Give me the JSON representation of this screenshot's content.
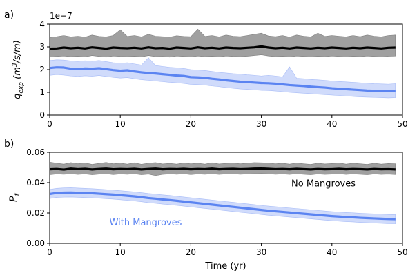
{
  "chart_data": [
    {
      "type": "line",
      "panel_label": "a)",
      "ylabel": "q_exp (m³/s/m)",
      "ylabel_parts": {
        "q": "q",
        "sub": "exp",
        "unit_open": " (m",
        "sup": "3",
        "unit_close": "/s/m)"
      },
      "y_multiplier": "1e−7",
      "xlim": [
        0,
        50
      ],
      "ylim": [
        0,
        4
      ],
      "xticks": [
        0,
        10,
        20,
        30,
        40,
        50
      ],
      "yticks": [
        0,
        1,
        2,
        3,
        4
      ],
      "grid": false,
      "series": [
        {
          "name": "No Mangroves",
          "color": "#000000",
          "band_color": "#808080",
          "x": [
            0,
            1,
            2,
            3,
            4,
            5,
            6,
            7,
            8,
            9,
            10,
            11,
            12,
            13,
            14,
            15,
            16,
            17,
            18,
            19,
            20,
            21,
            22,
            23,
            24,
            25,
            26,
            27,
            28,
            29,
            30,
            31,
            32,
            33,
            34,
            35,
            36,
            37,
            38,
            39,
            40,
            41,
            42,
            43,
            44,
            45,
            46,
            47,
            48,
            49
          ],
          "mean": [
            2.92,
            2.93,
            2.97,
            2.94,
            2.96,
            2.93,
            2.98,
            2.95,
            2.92,
            2.97,
            2.95,
            2.94,
            2.96,
            2.93,
            2.98,
            2.94,
            2.95,
            2.92,
            2.97,
            2.95,
            2.93,
            2.98,
            2.94,
            2.96,
            2.93,
            2.97,
            2.95,
            2.94,
            2.96,
            2.98,
            3.02,
            2.97,
            2.94,
            2.96,
            2.93,
            2.97,
            2.95,
            2.93,
            2.96,
            2.94,
            2.97,
            2.95,
            2.93,
            2.96,
            2.94,
            2.97,
            2.95,
            2.93,
            2.96,
            2.97
          ],
          "upper": [
            3.42,
            3.45,
            3.5,
            3.44,
            3.47,
            3.43,
            3.52,
            3.46,
            3.44,
            3.5,
            3.75,
            3.46,
            3.5,
            3.44,
            3.55,
            3.47,
            3.45,
            3.43,
            3.49,
            3.46,
            3.45,
            3.78,
            3.46,
            3.5,
            3.44,
            3.52,
            3.47,
            3.45,
            3.5,
            3.55,
            3.6,
            3.48,
            3.45,
            3.5,
            3.43,
            3.52,
            3.47,
            3.44,
            3.6,
            3.46,
            3.5,
            3.47,
            3.44,
            3.5,
            3.45,
            3.52,
            3.47,
            3.44,
            3.5,
            3.52
          ],
          "lower": [
            2.55,
            2.58,
            2.6,
            2.57,
            2.59,
            2.56,
            2.62,
            2.58,
            2.55,
            2.6,
            2.58,
            2.57,
            2.59,
            2.56,
            2.62,
            2.57,
            2.58,
            2.55,
            2.6,
            2.58,
            2.56,
            2.6,
            2.57,
            2.59,
            2.56,
            2.6,
            2.58,
            2.57,
            2.59,
            2.62,
            2.65,
            2.6,
            2.57,
            2.59,
            2.56,
            2.6,
            2.58,
            2.56,
            2.59,
            2.57,
            2.6,
            2.58,
            2.56,
            2.59,
            2.57,
            2.6,
            2.58,
            2.56,
            2.59,
            2.6
          ]
        },
        {
          "name": "With Mangroves",
          "color": "#5b84f1",
          "band_color": "#a9bdf7",
          "x": [
            0,
            1,
            2,
            3,
            4,
            5,
            6,
            7,
            8,
            9,
            10,
            11,
            12,
            13,
            14,
            15,
            16,
            17,
            18,
            19,
            20,
            21,
            22,
            23,
            24,
            25,
            26,
            27,
            28,
            29,
            30,
            31,
            32,
            33,
            34,
            35,
            36,
            37,
            38,
            39,
            40,
            41,
            42,
            43,
            44,
            45,
            46,
            47,
            48,
            49
          ],
          "mean": [
            2.07,
            2.1,
            2.09,
            2.04,
            2.02,
            2.05,
            2.04,
            2.06,
            2.02,
            1.98,
            1.95,
            1.97,
            1.92,
            1.88,
            1.85,
            1.83,
            1.8,
            1.77,
            1.74,
            1.72,
            1.67,
            1.66,
            1.64,
            1.6,
            1.57,
            1.53,
            1.5,
            1.47,
            1.45,
            1.43,
            1.41,
            1.4,
            1.38,
            1.35,
            1.32,
            1.3,
            1.28,
            1.25,
            1.23,
            1.21,
            1.18,
            1.16,
            1.14,
            1.12,
            1.1,
            1.08,
            1.07,
            1.06,
            1.05,
            1.06
          ],
          "upper": [
            2.4,
            2.43,
            2.42,
            2.38,
            2.36,
            2.39,
            2.37,
            2.4,
            2.35,
            2.3,
            2.28,
            2.3,
            2.25,
            2.2,
            2.52,
            2.18,
            2.14,
            2.1,
            2.08,
            2.05,
            2.0,
            1.98,
            1.96,
            1.92,
            1.88,
            1.85,
            1.82,
            1.8,
            1.77,
            1.75,
            1.72,
            1.75,
            1.72,
            1.68,
            2.12,
            1.62,
            1.6,
            1.57,
            1.55,
            1.53,
            1.5,
            1.48,
            1.46,
            1.44,
            1.42,
            1.4,
            1.38,
            1.37,
            1.36,
            1.38
          ],
          "lower": [
            1.75,
            1.78,
            1.76,
            1.72,
            1.7,
            1.73,
            1.71,
            1.74,
            1.7,
            1.66,
            1.63,
            1.65,
            1.6,
            1.56,
            1.53,
            1.5,
            1.47,
            1.44,
            1.42,
            1.39,
            1.35,
            1.34,
            1.32,
            1.28,
            1.25,
            1.21,
            1.18,
            1.15,
            1.13,
            1.11,
            1.09,
            1.08,
            1.06,
            1.03,
            1.0,
            0.98,
            0.96,
            0.94,
            0.92,
            0.9,
            0.88,
            0.86,
            0.84,
            0.82,
            0.8,
            0.79,
            0.78,
            0.77,
            0.76,
            0.77
          ]
        }
      ]
    },
    {
      "type": "line",
      "panel_label": "b)",
      "ylabel": "P_f",
      "ylabel_parts": {
        "main": "P",
        "sub": "f"
      },
      "xlabel": "Time (yr)",
      "xlim": [
        0,
        50
      ],
      "ylim": [
        0,
        0.06
      ],
      "xticks": [
        0,
        10,
        20,
        30,
        40,
        50
      ],
      "yticks": [
        0,
        0.02,
        0.04,
        0.06
      ],
      "ytick_labels": [
        "0.00",
        "0.02",
        "0.04",
        "0.06"
      ],
      "grid": false,
      "annotations": [
        {
          "text": "No Mangroves",
          "x": 38.8,
          "y": 0.0375,
          "color": "#000000"
        },
        {
          "text": "With Mangroves",
          "x": 13.6,
          "y": 0.0118,
          "color": "#5b84f1"
        }
      ],
      "series": [
        {
          "name": "No Mangroves",
          "color": "#000000",
          "band_color": "#808080",
          "x": [
            0,
            1,
            2,
            3,
            4,
            5,
            6,
            7,
            8,
            9,
            10,
            11,
            12,
            13,
            14,
            15,
            16,
            17,
            18,
            19,
            20,
            21,
            22,
            23,
            24,
            25,
            26,
            27,
            28,
            29,
            30,
            31,
            32,
            33,
            34,
            35,
            36,
            37,
            38,
            39,
            40,
            41,
            42,
            43,
            44,
            45,
            46,
            47,
            48,
            49
          ],
          "mean": [
            0.0488,
            0.049,
            0.0486,
            0.0492,
            0.0489,
            0.0491,
            0.0487,
            0.049,
            0.0492,
            0.0488,
            0.049,
            0.0489,
            0.0491,
            0.0487,
            0.049,
            0.0492,
            0.0488,
            0.049,
            0.0489,
            0.0491,
            0.0488,
            0.049,
            0.0489,
            0.0492,
            0.0488,
            0.049,
            0.0491,
            0.0489,
            0.049,
            0.0492,
            0.0493,
            0.0491,
            0.0489,
            0.049,
            0.0488,
            0.0491,
            0.0489,
            0.0487,
            0.049,
            0.0488,
            0.0489,
            0.0491,
            0.0488,
            0.049,
            0.0489,
            0.0487,
            0.049,
            0.0488,
            0.0489,
            0.0487
          ],
          "upper": [
            0.0535,
            0.0528,
            0.0522,
            0.0532,
            0.0525,
            0.053,
            0.052,
            0.0527,
            0.0533,
            0.0524,
            0.0529,
            0.0522,
            0.0531,
            0.0521,
            0.0528,
            0.0532,
            0.0523,
            0.0527,
            0.0522,
            0.053,
            0.0524,
            0.0528,
            0.0522,
            0.0531,
            0.0523,
            0.0527,
            0.053,
            0.0524,
            0.0528,
            0.0532,
            0.0531,
            0.0529,
            0.0524,
            0.0528,
            0.0522,
            0.053,
            0.0524,
            0.052,
            0.0528,
            0.0523,
            0.0526,
            0.053,
            0.0522,
            0.0528,
            0.0524,
            0.052,
            0.0528,
            0.0522,
            0.0526,
            0.0524
          ],
          "lower": [
            0.0452,
            0.0457,
            0.0455,
            0.0458,
            0.0454,
            0.0457,
            0.0452,
            0.0456,
            0.0458,
            0.0453,
            0.0457,
            0.0455,
            0.0458,
            0.0452,
            0.0456,
            0.0446,
            0.0454,
            0.0457,
            0.0455,
            0.0458,
            0.0453,
            0.0457,
            0.0455,
            0.0458,
            0.0454,
            0.0457,
            0.0458,
            0.0455,
            0.0457,
            0.0459,
            0.046,
            0.0458,
            0.0455,
            0.0457,
            0.0454,
            0.0458,
            0.0455,
            0.0452,
            0.0457,
            0.0454,
            0.0456,
            0.0458,
            0.0454,
            0.0457,
            0.0455,
            0.0452,
            0.0457,
            0.0454,
            0.0456,
            0.0453
          ]
        },
        {
          "name": "With Mangroves",
          "color": "#5b84f1",
          "band_color": "#a9bdf7",
          "x": [
            0,
            1,
            2,
            3,
            4,
            5,
            6,
            7,
            8,
            9,
            10,
            11,
            12,
            13,
            14,
            15,
            16,
            17,
            18,
            19,
            20,
            21,
            22,
            23,
            24,
            25,
            26,
            27,
            28,
            29,
            30,
            31,
            32,
            33,
            34,
            35,
            36,
            37,
            38,
            39,
            40,
            41,
            42,
            43,
            44,
            45,
            46,
            47,
            48,
            49
          ],
          "mean": [
            0.0325,
            0.0332,
            0.0334,
            0.0335,
            0.0333,
            0.0331,
            0.033,
            0.0327,
            0.0324,
            0.0321,
            0.0317,
            0.0313,
            0.0309,
            0.0304,
            0.0298,
            0.0294,
            0.0289,
            0.0285,
            0.028,
            0.0275,
            0.027,
            0.0265,
            0.026,
            0.0255,
            0.025,
            0.0245,
            0.024,
            0.0235,
            0.023,
            0.0225,
            0.022,
            0.0215,
            0.0211,
            0.0207,
            0.0203,
            0.0199,
            0.0195,
            0.0191,
            0.0187,
            0.0183,
            0.0179,
            0.0176,
            0.0173,
            0.0171,
            0.0168,
            0.0166,
            0.0164,
            0.0162,
            0.016,
            0.0159
          ],
          "upper": [
            0.0355,
            0.0362,
            0.0365,
            0.0367,
            0.0364,
            0.0362,
            0.036,
            0.0357,
            0.0354,
            0.0351,
            0.0347,
            0.0343,
            0.0339,
            0.0334,
            0.0328,
            0.0324,
            0.0319,
            0.0315,
            0.031,
            0.0305,
            0.03,
            0.0295,
            0.029,
            0.0285,
            0.028,
            0.0275,
            0.027,
            0.0265,
            0.026,
            0.0255,
            0.025,
            0.0245,
            0.0241,
            0.0237,
            0.0233,
            0.0229,
            0.0225,
            0.0221,
            0.0217,
            0.0213,
            0.0209,
            0.0206,
            0.0203,
            0.0201,
            0.0198,
            0.0196,
            0.0194,
            0.0192,
            0.019,
            0.0189
          ],
          "lower": [
            0.0295,
            0.0302,
            0.0304,
            0.0305,
            0.0303,
            0.0301,
            0.03,
            0.0297,
            0.0294,
            0.0291,
            0.0287,
            0.0283,
            0.0279,
            0.0274,
            0.0268,
            0.0264,
            0.0259,
            0.0255,
            0.025,
            0.0245,
            0.024,
            0.0235,
            0.023,
            0.0225,
            0.022,
            0.0215,
            0.021,
            0.0205,
            0.02,
            0.0195,
            0.019,
            0.0185,
            0.0181,
            0.0177,
            0.0173,
            0.0169,
            0.0165,
            0.0161,
            0.0157,
            0.0153,
            0.0149,
            0.0146,
            0.0143,
            0.0141,
            0.0138,
            0.0136,
            0.0134,
            0.0132,
            0.013,
            0.0129
          ]
        }
      ]
    }
  ]
}
